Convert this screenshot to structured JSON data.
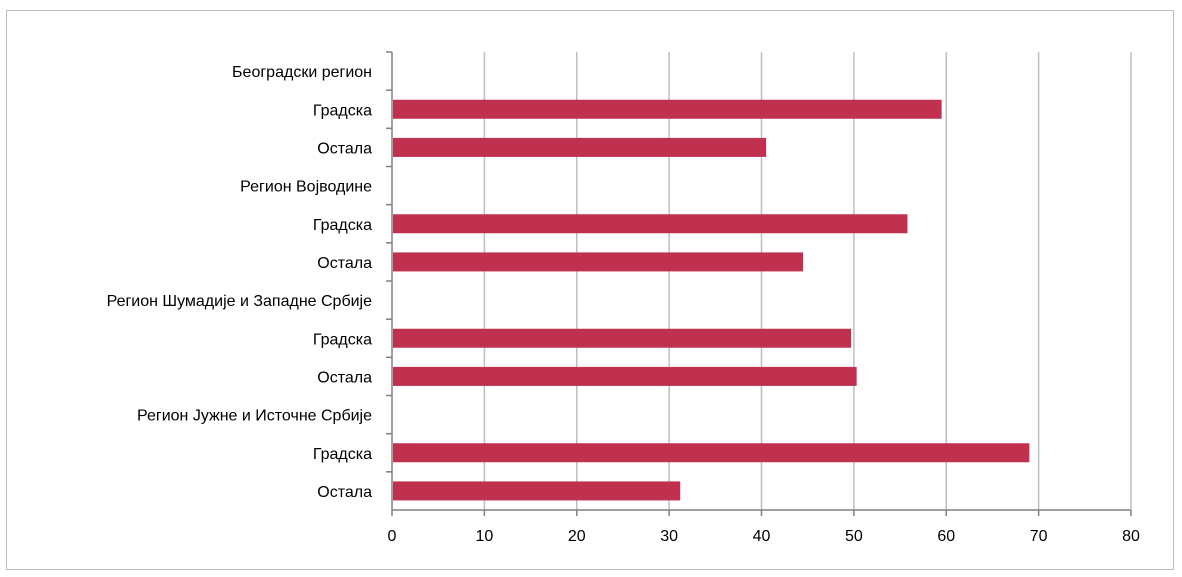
{
  "chart_data": {
    "type": "bar",
    "orientation": "horizontal",
    "categories": [
      "Београдски регион",
      "Градска",
      "Остала",
      "Регион Војводине",
      "Градска",
      "Остала",
      "Регион Шумадије и Западне Србије",
      "Градска",
      "Остала",
      "Регион Јужне и Источне Србије",
      "Градска",
      "Остала"
    ],
    "values": [
      null,
      59.5,
      40.5,
      null,
      55.8,
      44.5,
      null,
      49.7,
      50.3,
      null,
      69.0,
      31.2
    ],
    "xlim": [
      0,
      80
    ],
    "xticks": [
      "0",
      "10",
      "20",
      "30",
      "40",
      "50",
      "60",
      "70",
      "80"
    ],
    "grid": true,
    "legend": "none",
    "bar_color": "#c0304f",
    "grid_color": "#bfbfbf",
    "axis_color": "#808080"
  }
}
